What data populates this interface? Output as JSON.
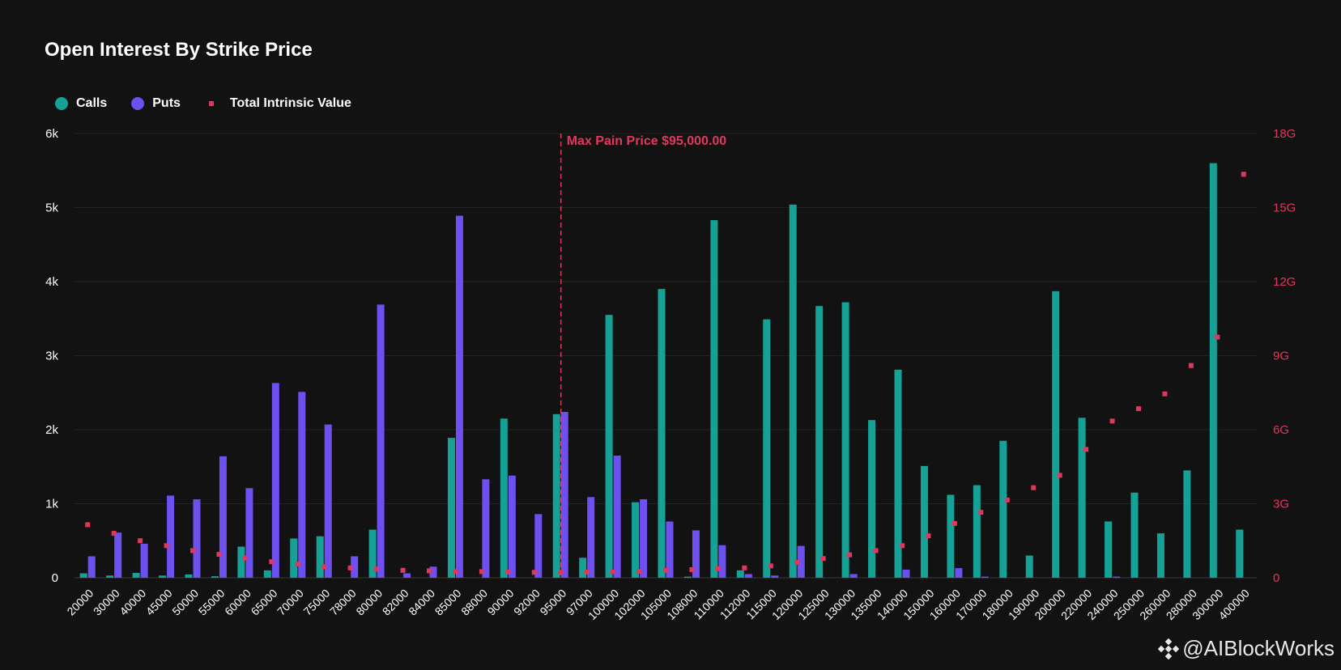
{
  "header": {
    "title": "Open Interest By Strike Price"
  },
  "legend": {
    "calls_label": "Calls",
    "puts_label": "Puts",
    "tiv_label": "Total Intrinsic Value"
  },
  "watermark": {
    "text": "@AIBlockWorks"
  },
  "colors": {
    "calls": "#15a196",
    "puts": "#6e4ff0",
    "tiv": "#e0385d",
    "max_pain": "#e0385d",
    "background": "#121212"
  },
  "chart_data": {
    "type": "bar",
    "title": "Open Interest By Strike Price",
    "categories": [
      "20000",
      "30000",
      "40000",
      "45000",
      "50000",
      "55000",
      "60000",
      "65000",
      "70000",
      "75000",
      "78000",
      "80000",
      "82000",
      "84000",
      "85000",
      "88000",
      "90000",
      "92000",
      "95000",
      "97000",
      "100000",
      "102000",
      "105000",
      "108000",
      "110000",
      "112000",
      "115000",
      "120000",
      "125000",
      "130000",
      "135000",
      "140000",
      "150000",
      "160000",
      "170000",
      "180000",
      "190000",
      "200000",
      "220000",
      "240000",
      "250000",
      "260000",
      "280000",
      "300000",
      "400000"
    ],
    "y_ticks": [
      "0",
      "1k",
      "2k",
      "3k",
      "4k",
      "5k",
      "6k"
    ],
    "ylim": [
      0,
      6000
    ],
    "y2_ticks": [
      "0",
      "3G",
      "6G",
      "9G",
      "12G",
      "15G",
      "18G"
    ],
    "y2lim": [
      0,
      18000000000
    ],
    "series": [
      {
        "name": "Calls",
        "axis": "left",
        "kind": "bar",
        "values": [
          60,
          30,
          65,
          30,
          45,
          20,
          420,
          100,
          530,
          560,
          0,
          650,
          0,
          0,
          1890,
          0,
          2150,
          0,
          2210,
          270,
          3550,
          1020,
          3900,
          15,
          4830,
          100,
          3490,
          5040,
          3670,
          3720,
          2130,
          2810,
          1510,
          1120,
          1250,
          1850,
          300,
          3870,
          2160,
          760,
          1150,
          600,
          1450,
          5600,
          650
        ]
      },
      {
        "name": "Puts",
        "axis": "left",
        "kind": "bar",
        "values": [
          290,
          610,
          460,
          1110,
          1060,
          1640,
          1210,
          2630,
          2510,
          2070,
          290,
          3690,
          60,
          150,
          4890,
          1330,
          1380,
          860,
          2240,
          1090,
          1650,
          1060,
          760,
          640,
          440,
          50,
          30,
          430,
          0,
          50,
          0,
          110,
          0,
          130,
          15,
          0,
          0,
          0,
          0,
          15,
          0,
          0,
          0,
          0,
          0
        ]
      },
      {
        "name": "Total Intrinsic Value",
        "axis": "right",
        "kind": "scatter",
        "values": [
          2150000000,
          1800000000,
          1500000000,
          1300000000,
          1100000000,
          950000000,
          800000000,
          650000000,
          550000000,
          450000000,
          400000000,
          350000000,
          300000000,
          280000000,
          250000000,
          250000000,
          230000000,
          220000000,
          220000000,
          230000000,
          240000000,
          260000000,
          300000000,
          330000000,
          370000000,
          400000000,
          480000000,
          620000000,
          780000000,
          930000000,
          1100000000,
          1300000000,
          1700000000,
          2200000000,
          2650000000,
          3150000000,
          3650000000,
          4150000000,
          5200000000,
          6350000000,
          6850000000,
          7450000000,
          8600000000,
          9750000000,
          16350000000
        ]
      }
    ],
    "annotation": {
      "label": "Max Pain Price $95,000.00",
      "category": "95000"
    },
    "grid": true,
    "legend_position": "top-left"
  }
}
